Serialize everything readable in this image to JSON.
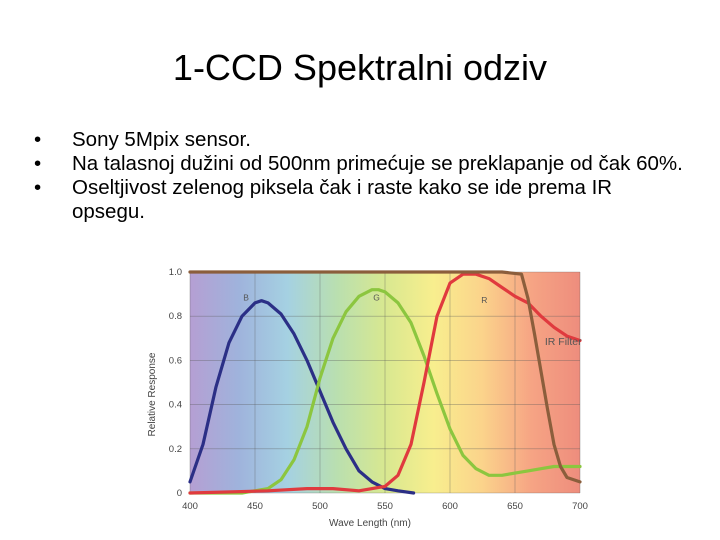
{
  "slide": {
    "title": "1-CCD Spektralni odziv",
    "bullets": [
      {
        "marker": "•",
        "text": "Sony 5Mpix sensor."
      },
      {
        "marker": "•",
        "text": "Na talasnoj dužini od 500nm primećuje se preklapanje od čak 60%."
      },
      {
        "marker": "•",
        "text": "Oseltjivost zelenog piksela čak i raste kako se ide prema IR opsegu."
      }
    ]
  },
  "chart_data": {
    "type": "line",
    "title": "",
    "xlabel": "Wave Length (nm)",
    "ylabel": "Relative Response",
    "xlim": [
      400,
      700
    ],
    "ylim": [
      0,
      1.0
    ],
    "xticks": [
      "400",
      "450",
      "500",
      "550",
      "600",
      "650",
      "700"
    ],
    "yticks": [
      "0",
      "0.2",
      "0.4",
      "0.6",
      "0.8",
      "1.0"
    ],
    "grid": true,
    "series": [
      {
        "name": "B",
        "color": "#2b2f86",
        "x": [
          400,
          410,
          420,
          430,
          440,
          450,
          455,
          460,
          470,
          480,
          490,
          500,
          510,
          520,
          530,
          540,
          550,
          560,
          572
        ],
        "y": [
          0.05,
          0.22,
          0.48,
          0.68,
          0.8,
          0.86,
          0.87,
          0.86,
          0.81,
          0.72,
          0.6,
          0.46,
          0.32,
          0.2,
          0.1,
          0.05,
          0.02,
          0.01,
          0.0
        ]
      },
      {
        "name": "G",
        "color": "#8cc63f",
        "x": [
          400,
          440,
          460,
          470,
          480,
          490,
          500,
          510,
          520,
          530,
          540,
          545,
          550,
          560,
          570,
          580,
          590,
          600,
          610,
          620,
          630,
          640,
          650,
          660,
          670,
          680,
          690,
          700
        ],
        "y": [
          0.0,
          0.0,
          0.02,
          0.06,
          0.15,
          0.3,
          0.52,
          0.7,
          0.82,
          0.89,
          0.92,
          0.92,
          0.91,
          0.86,
          0.77,
          0.62,
          0.45,
          0.29,
          0.17,
          0.11,
          0.08,
          0.08,
          0.09,
          0.1,
          0.11,
          0.12,
          0.12,
          0.12
        ]
      },
      {
        "name": "R",
        "color": "#e03a3e",
        "x": [
          400,
          460,
          490,
          510,
          530,
          550,
          560,
          570,
          580,
          590,
          600,
          610,
          620,
          630,
          640,
          650,
          660,
          670,
          680,
          690,
          700
        ],
        "y": [
          0.0,
          0.01,
          0.02,
          0.02,
          0.01,
          0.03,
          0.08,
          0.22,
          0.5,
          0.8,
          0.95,
          0.99,
          0.99,
          0.97,
          0.93,
          0.89,
          0.86,
          0.8,
          0.75,
          0.71,
          0.69
        ]
      },
      {
        "name": "IR Filter",
        "color": "#8b5e3c",
        "x": [
          400,
          610,
          640,
          655,
          660,
          665,
          670,
          675,
          680,
          685,
          690,
          700
        ],
        "y": [
          1.0,
          1.0,
          1.0,
          0.99,
          0.88,
          0.72,
          0.55,
          0.38,
          0.22,
          0.12,
          0.07,
          0.05
        ]
      }
    ],
    "annotations": [
      {
        "text": "B",
        "x": 441,
        "y": 0.87
      },
      {
        "text": "G",
        "x": 541,
        "y": 0.87
      },
      {
        "text": "R",
        "x": 624,
        "y": 0.86
      },
      {
        "text": "IR Filter",
        "x": 673,
        "y": 0.67
      }
    ],
    "background_gradient": [
      "#b59fd3",
      "#9fb3dc",
      "#a5d1e2",
      "#b9dfb0",
      "#d8e890",
      "#f8ee8e",
      "#fbd38b",
      "#f6a484",
      "#ee8d7d"
    ]
  }
}
